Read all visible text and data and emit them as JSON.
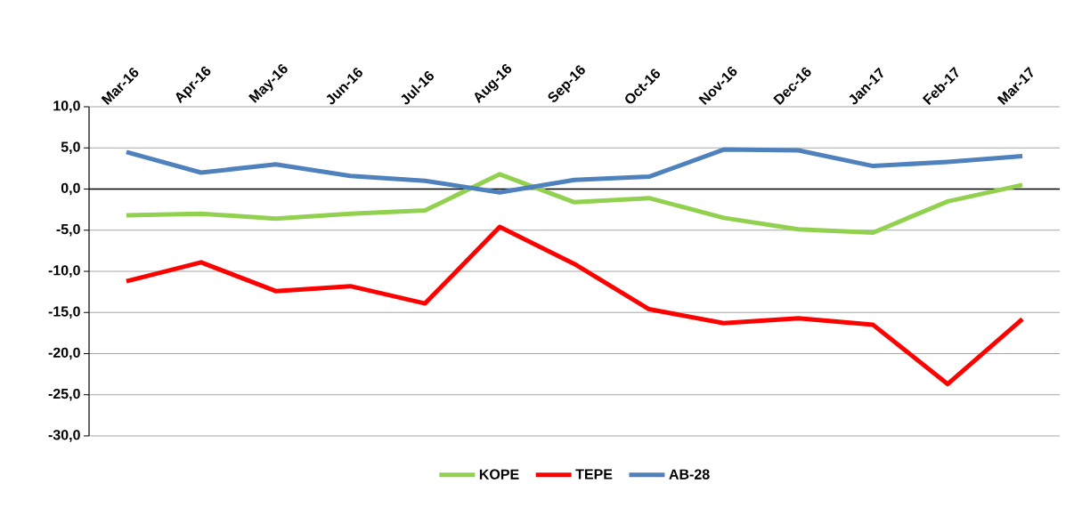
{
  "chart_data": {
    "type": "line",
    "categories": [
      "Mar-16",
      "Apr-16",
      "May-16",
      "Jun-16",
      "Jul-16",
      "Aug-16",
      "Sep-16",
      "Oct-16",
      "Nov-16",
      "Dec-16",
      "Jan-17",
      "Feb-17",
      "Mar-17"
    ],
    "series": [
      {
        "name": "KOPE",
        "color": "#92d050",
        "values": [
          -3.2,
          -3.0,
          -3.6,
          -3.0,
          -2.6,
          1.8,
          -1.6,
          -1.1,
          -3.5,
          -4.9,
          -5.3,
          -1.5,
          0.5
        ]
      },
      {
        "name": "TEPE",
        "color": "#ff0000",
        "values": [
          -11.2,
          -8.9,
          -12.4,
          -11.8,
          -13.9,
          -4.6,
          -9.1,
          -14.6,
          -16.3,
          -15.7,
          -16.5,
          -23.7,
          -15.8
        ]
      },
      {
        "name": "AB-28",
        "color": "#4f81bd",
        "values": [
          4.5,
          2.0,
          3.0,
          1.6,
          1.0,
          -0.4,
          1.1,
          1.5,
          4.8,
          4.7,
          2.8,
          3.3,
          4.0
        ]
      }
    ],
    "ylim": [
      -30,
      10
    ],
    "yticks": [
      {
        "value": -30,
        "label": "-30,0"
      },
      {
        "value": -25,
        "label": "-25,0"
      },
      {
        "value": -20,
        "label": "-20,0"
      },
      {
        "value": -15,
        "label": "-15,0"
      },
      {
        "value": -10,
        "label": "-10,0"
      },
      {
        "value": -5,
        "label": "-5,0"
      },
      {
        "value": 0,
        "label": "0,0"
      },
      {
        "value": 5,
        "label": "5,0"
      },
      {
        "value": 10,
        "label": "10,0"
      }
    ],
    "grid": "y",
    "legend": "bottom",
    "marker": "none",
    "line_style": "solid"
  }
}
